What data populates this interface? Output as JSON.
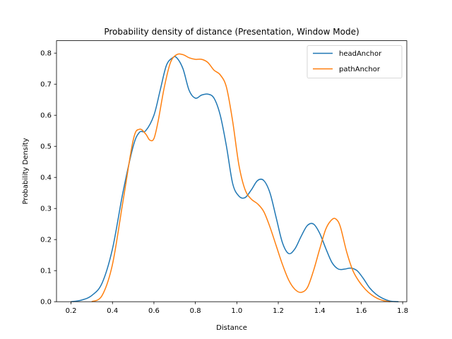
{
  "chart_data": {
    "type": "line",
    "title": "Probability density of distance (Presentation, Window Mode)",
    "xlabel": "Distance",
    "ylabel": "Probability Density",
    "xlim": [
      0.13,
      1.82
    ],
    "ylim": [
      0,
      0.84
    ],
    "xticks": [
      0.2,
      0.4,
      0.6,
      0.8,
      1.0,
      1.2,
      1.4,
      1.6,
      1.8
    ],
    "xtick_labels": [
      "0.2",
      "0.4",
      "0.6",
      "0.8",
      "1.0",
      "1.2",
      "1.4",
      "1.6",
      "1.8"
    ],
    "yticks": [
      0.0,
      0.1,
      0.2,
      0.3,
      0.4,
      0.5,
      0.6,
      0.7,
      0.8
    ],
    "ytick_labels": [
      "0.0",
      "0.1",
      "0.2",
      "0.3",
      "0.4",
      "0.5",
      "0.6",
      "0.7",
      "0.8"
    ],
    "grid": false,
    "legend_position": "top-right",
    "series": [
      {
        "name": "headAnchor",
        "color": "#1f77b4",
        "x": [
          0.2,
          0.25,
          0.3,
          0.35,
          0.4,
          0.45,
          0.5,
          0.53,
          0.56,
          0.6,
          0.63,
          0.66,
          0.69,
          0.71,
          0.74,
          0.77,
          0.8,
          0.83,
          0.86,
          0.89,
          0.92,
          0.95,
          0.98,
          1.01,
          1.04,
          1.07,
          1.1,
          1.13,
          1.16,
          1.19,
          1.22,
          1.25,
          1.28,
          1.31,
          1.34,
          1.37,
          1.4,
          1.43,
          1.46,
          1.49,
          1.52,
          1.55,
          1.58,
          1.61,
          1.64,
          1.67,
          1.7,
          1.74,
          1.78
        ],
        "y": [
          0.0,
          0.005,
          0.02,
          0.06,
          0.17,
          0.35,
          0.5,
          0.545,
          0.55,
          0.6,
          0.68,
          0.76,
          0.785,
          0.785,
          0.75,
          0.68,
          0.655,
          0.665,
          0.668,
          0.655,
          0.6,
          0.5,
          0.38,
          0.34,
          0.335,
          0.36,
          0.39,
          0.39,
          0.35,
          0.27,
          0.19,
          0.155,
          0.17,
          0.21,
          0.245,
          0.25,
          0.22,
          0.17,
          0.125,
          0.105,
          0.105,
          0.108,
          0.1,
          0.075,
          0.045,
          0.025,
          0.012,
          0.002,
          0.0
        ]
      },
      {
        "name": "pathAnchor",
        "color": "#ff7f0e",
        "x": [
          0.3,
          0.35,
          0.4,
          0.45,
          0.5,
          0.53,
          0.56,
          0.58,
          0.6,
          0.62,
          0.65,
          0.68,
          0.71,
          0.74,
          0.77,
          0.8,
          0.83,
          0.86,
          0.89,
          0.92,
          0.95,
          0.98,
          1.01,
          1.04,
          1.07,
          1.1,
          1.13,
          1.16,
          1.19,
          1.22,
          1.25,
          1.28,
          1.31,
          1.34,
          1.37,
          1.4,
          1.43,
          1.46,
          1.48,
          1.5,
          1.53,
          1.56,
          1.59,
          1.62,
          1.65,
          1.68,
          1.71,
          1.74
        ],
        "y": [
          0.0,
          0.02,
          0.12,
          0.32,
          0.52,
          0.555,
          0.54,
          0.52,
          0.525,
          0.58,
          0.69,
          0.77,
          0.795,
          0.795,
          0.785,
          0.78,
          0.78,
          0.77,
          0.745,
          0.73,
          0.69,
          0.58,
          0.44,
          0.36,
          0.33,
          0.315,
          0.29,
          0.24,
          0.18,
          0.12,
          0.07,
          0.04,
          0.03,
          0.045,
          0.1,
          0.17,
          0.235,
          0.265,
          0.265,
          0.24,
          0.16,
          0.1,
          0.065,
          0.04,
          0.022,
          0.01,
          0.003,
          0.0
        ]
      }
    ]
  }
}
